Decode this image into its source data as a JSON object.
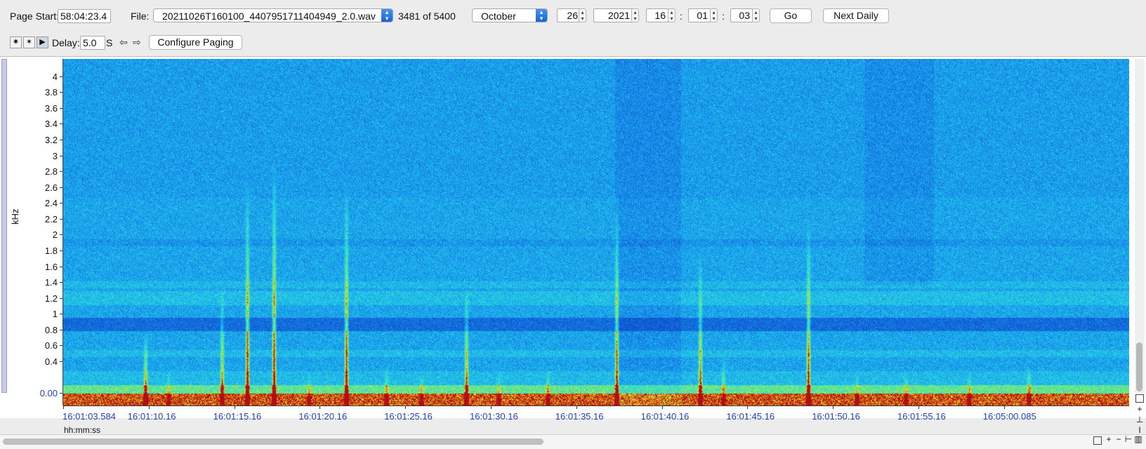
{
  "toolbar": {
    "page_start_label": "Page Start:",
    "page_start_value": "58:04:23.4",
    "file_label": "File:",
    "file_value": "20211026T160100_4407951711404949_2.0.wav",
    "file_count": "3481 of 5400",
    "month": "October",
    "day": "26",
    "year": "2021",
    "hour": "16",
    "minute": "01",
    "second": "03",
    "time_sep": ":",
    "go_label": "Go",
    "next_daily_label": "Next Daily"
  },
  "toolbar2": {
    "delay_label": "Delay:",
    "delay_value": "5.0",
    "delay_unit": "S",
    "configure_paging_label": "Configure Paging"
  },
  "plot": {
    "y_axis_label": "kHz",
    "x_axis_unit": "hh:mm:ss",
    "y_ticks": [
      "4",
      "3.8",
      "3.6",
      "3.4",
      "3.2",
      "3",
      "2.8",
      "2.6",
      "2.4",
      "2.2",
      "2",
      "1.8",
      "1.6",
      "1.4",
      "1.2",
      "1",
      "0.8",
      "0.6",
      "0.4",
      "0.00"
    ],
    "y_tick_values": [
      4,
      3.8,
      3.6,
      3.4,
      3.2,
      3,
      2.8,
      2.6,
      2.4,
      2.2,
      2,
      1.8,
      1.6,
      1.4,
      1.2,
      1,
      0.8,
      0.6,
      0.4,
      0
    ],
    "y_max": 4.22,
    "x_ticks": [
      "16:01:03.584",
      "16:01:10.16",
      "16:01:15.16",
      "16:01:20.16",
      "16:01:25.16",
      "16:01:30.16",
      "16:01:35.16",
      "16:01:40.16",
      "16:01:45.16",
      "16:01:50.16",
      "16:01:55.16",
      "16:05:00.085"
    ],
    "colors": {
      "background_blue": "#1a7be0",
      "cyan": "#22c8f0",
      "deep_blue": "#1550c8",
      "green": "#5ee070",
      "yellow": "#f0e020",
      "red": "#c81818"
    }
  }
}
